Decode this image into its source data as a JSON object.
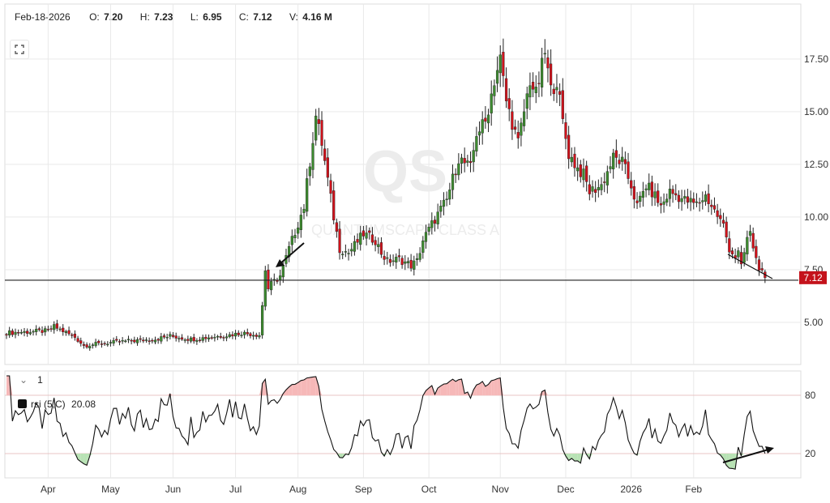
{
  "header": {
    "date": "Feb-18-2026",
    "open_label": "O:",
    "open": "7.20",
    "high_label": "H:",
    "high": "7.23",
    "low_label": "L:",
    "low": "6.95",
    "close_label": "C:",
    "close": "7.12",
    "volume_label": "V:",
    "volume": "4.16 M"
  },
  "toolbar": {
    "expand_icon": "fullscreen-icon"
  },
  "rsi_pane": {
    "collapse_icon": "chevron-down-icon",
    "pane_number": "1",
    "legend_label": "rsi (5,C)",
    "legend_value": "20.08"
  },
  "colors": {
    "up": "#3d8b2f",
    "down": "#d0121b",
    "rsi_line": "#111111",
    "overbought_fill": "#f6b8b8",
    "oversold_fill": "#b8e2b4",
    "price_tag": "#c4121b",
    "grid": "#e9e9e9"
  },
  "chart_data": [
    {
      "type": "candlestick",
      "watermark": "QS",
      "watermark_subtitle": "QUANTUMSCAPE CLASS A",
      "x_ticks": [
        "Apr",
        "May",
        "Jun",
        "Jul",
        "Aug",
        "Sep",
        "Oct",
        "Nov",
        "Dec",
        "2026",
        "Feb"
      ],
      "y_ticks": [
        "5.00",
        "7.50",
        "10.00",
        "12.50",
        "15.00",
        "17.50"
      ],
      "ylim": [
        3.0,
        19.8
      ],
      "y_scale": "linear",
      "horizontal_line": 7.0,
      "last_price": "7.12",
      "grid": true,
      "anchors": [
        [
          0,
          4.5
        ],
        [
          14,
          4.6
        ],
        [
          16,
          4.8
        ],
        [
          23,
          4.3
        ],
        [
          26,
          3.9
        ],
        [
          32,
          4.0
        ],
        [
          40,
          4.1
        ],
        [
          50,
          4.2
        ],
        [
          55,
          4.35
        ],
        [
          62,
          4.2
        ],
        [
          75,
          4.4
        ],
        [
          79,
          4.5
        ],
        [
          85,
          4.4
        ],
        [
          86,
          5.8
        ],
        [
          87,
          7.5
        ],
        [
          88,
          6.6
        ],
        [
          89,
          6.8
        ],
        [
          92,
          7.2
        ],
        [
          95,
          8.5
        ],
        [
          100,
          10.5
        ],
        [
          104,
          14.8
        ],
        [
          106,
          13.5
        ],
        [
          110,
          10.0
        ],
        [
          112,
          8.5
        ],
        [
          115,
          8.3
        ],
        [
          120,
          9.2
        ],
        [
          124,
          8.9
        ],
        [
          126,
          8.3
        ],
        [
          128,
          7.9
        ],
        [
          132,
          8.0
        ],
        [
          136,
          7.7
        ],
        [
          138,
          7.9
        ],
        [
          140,
          8.9
        ],
        [
          144,
          9.9
        ],
        [
          148,
          10.8
        ],
        [
          152,
          12.8
        ],
        [
          156,
          12.3
        ],
        [
          158,
          14.0
        ],
        [
          161,
          14.5
        ],
        [
          164,
          16.5
        ],
        [
          166,
          17.5
        ],
        [
          168,
          15.5
        ],
        [
          170,
          14.5
        ],
        [
          172,
          13.5
        ],
        [
          174,
          15.0
        ],
        [
          176,
          16.5
        ],
        [
          178,
          15.8
        ],
        [
          181,
          17.8
        ],
        [
          183,
          16.0
        ],
        [
          185,
          16.5
        ],
        [
          187,
          14.5
        ],
        [
          189,
          13.0
        ],
        [
          192,
          12.3
        ],
        [
          194,
          12.0
        ],
        [
          196,
          11.2
        ],
        [
          200,
          11.5
        ],
        [
          204,
          12.8
        ],
        [
          207,
          12.6
        ],
        [
          210,
          11.5
        ],
        [
          212,
          10.5
        ],
        [
          215,
          11.5
        ],
        [
          218,
          11.0
        ],
        [
          220,
          10.5
        ],
        [
          223,
          11.2
        ],
        [
          228,
          10.8
        ],
        [
          232,
          10.6
        ],
        [
          235,
          11.0
        ],
        [
          238,
          10.3
        ],
        [
          241,
          9.6
        ],
        [
          243,
          8.5
        ],
        [
          245,
          8.1
        ],
        [
          246,
          8.3
        ],
        [
          247,
          7.6
        ],
        [
          249,
          9.0
        ],
        [
          250,
          9.2
        ],
        [
          252,
          8.0
        ],
        [
          254,
          7.3
        ],
        [
          255,
          7.12
        ]
      ],
      "bars_count": 256
    },
    {
      "type": "line",
      "series": [
        {
          "name": "rsi (5,C)"
        }
      ],
      "y_ticks": [
        "20",
        "80"
      ],
      "overbought": 80,
      "oversold": 20,
      "ylim": [
        0,
        100
      ],
      "last_value": 20.08
    }
  ]
}
